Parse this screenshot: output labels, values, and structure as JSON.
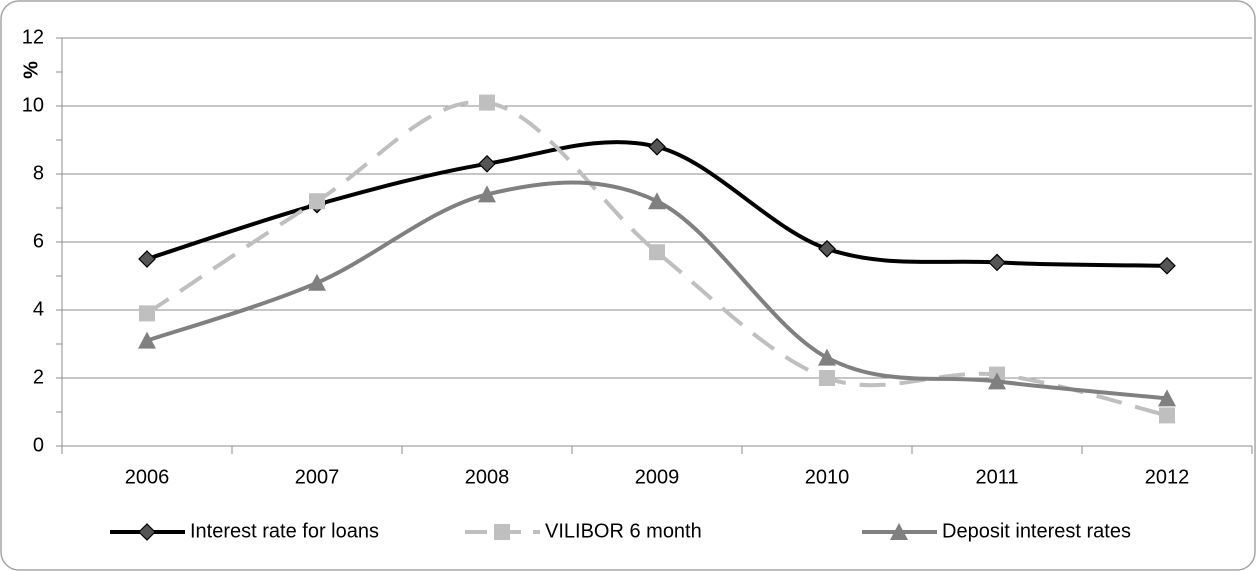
{
  "chart_data": {
    "type": "line",
    "y_label": "%",
    "categories": [
      "2006",
      "2007",
      "2008",
      "2009",
      "2010",
      "2011",
      "2012"
    ],
    "series": [
      {
        "name": "Interest rate for loans",
        "color": "#000000",
        "marker": "diamond",
        "dash": false,
        "values": [
          5.5,
          7.1,
          8.3,
          8.8,
          5.8,
          5.4,
          5.3
        ]
      },
      {
        "name": "VILIBOR 6 month",
        "color": "#bfbfbf",
        "marker": "square",
        "dash": true,
        "values": [
          3.9,
          7.2,
          10.1,
          5.7,
          2.0,
          2.1,
          0.9
        ]
      },
      {
        "name": "Deposit interest rates",
        "color": "#808080",
        "marker": "triangle",
        "dash": false,
        "values": [
          3.1,
          4.8,
          7.4,
          7.2,
          2.6,
          1.9,
          1.4
        ]
      }
    ],
    "ylim": [
      0,
      12
    ],
    "yticks": [
      0,
      2,
      4,
      6,
      8,
      10,
      12
    ],
    "grid": true,
    "smooth": true,
    "legend": "bottom"
  }
}
